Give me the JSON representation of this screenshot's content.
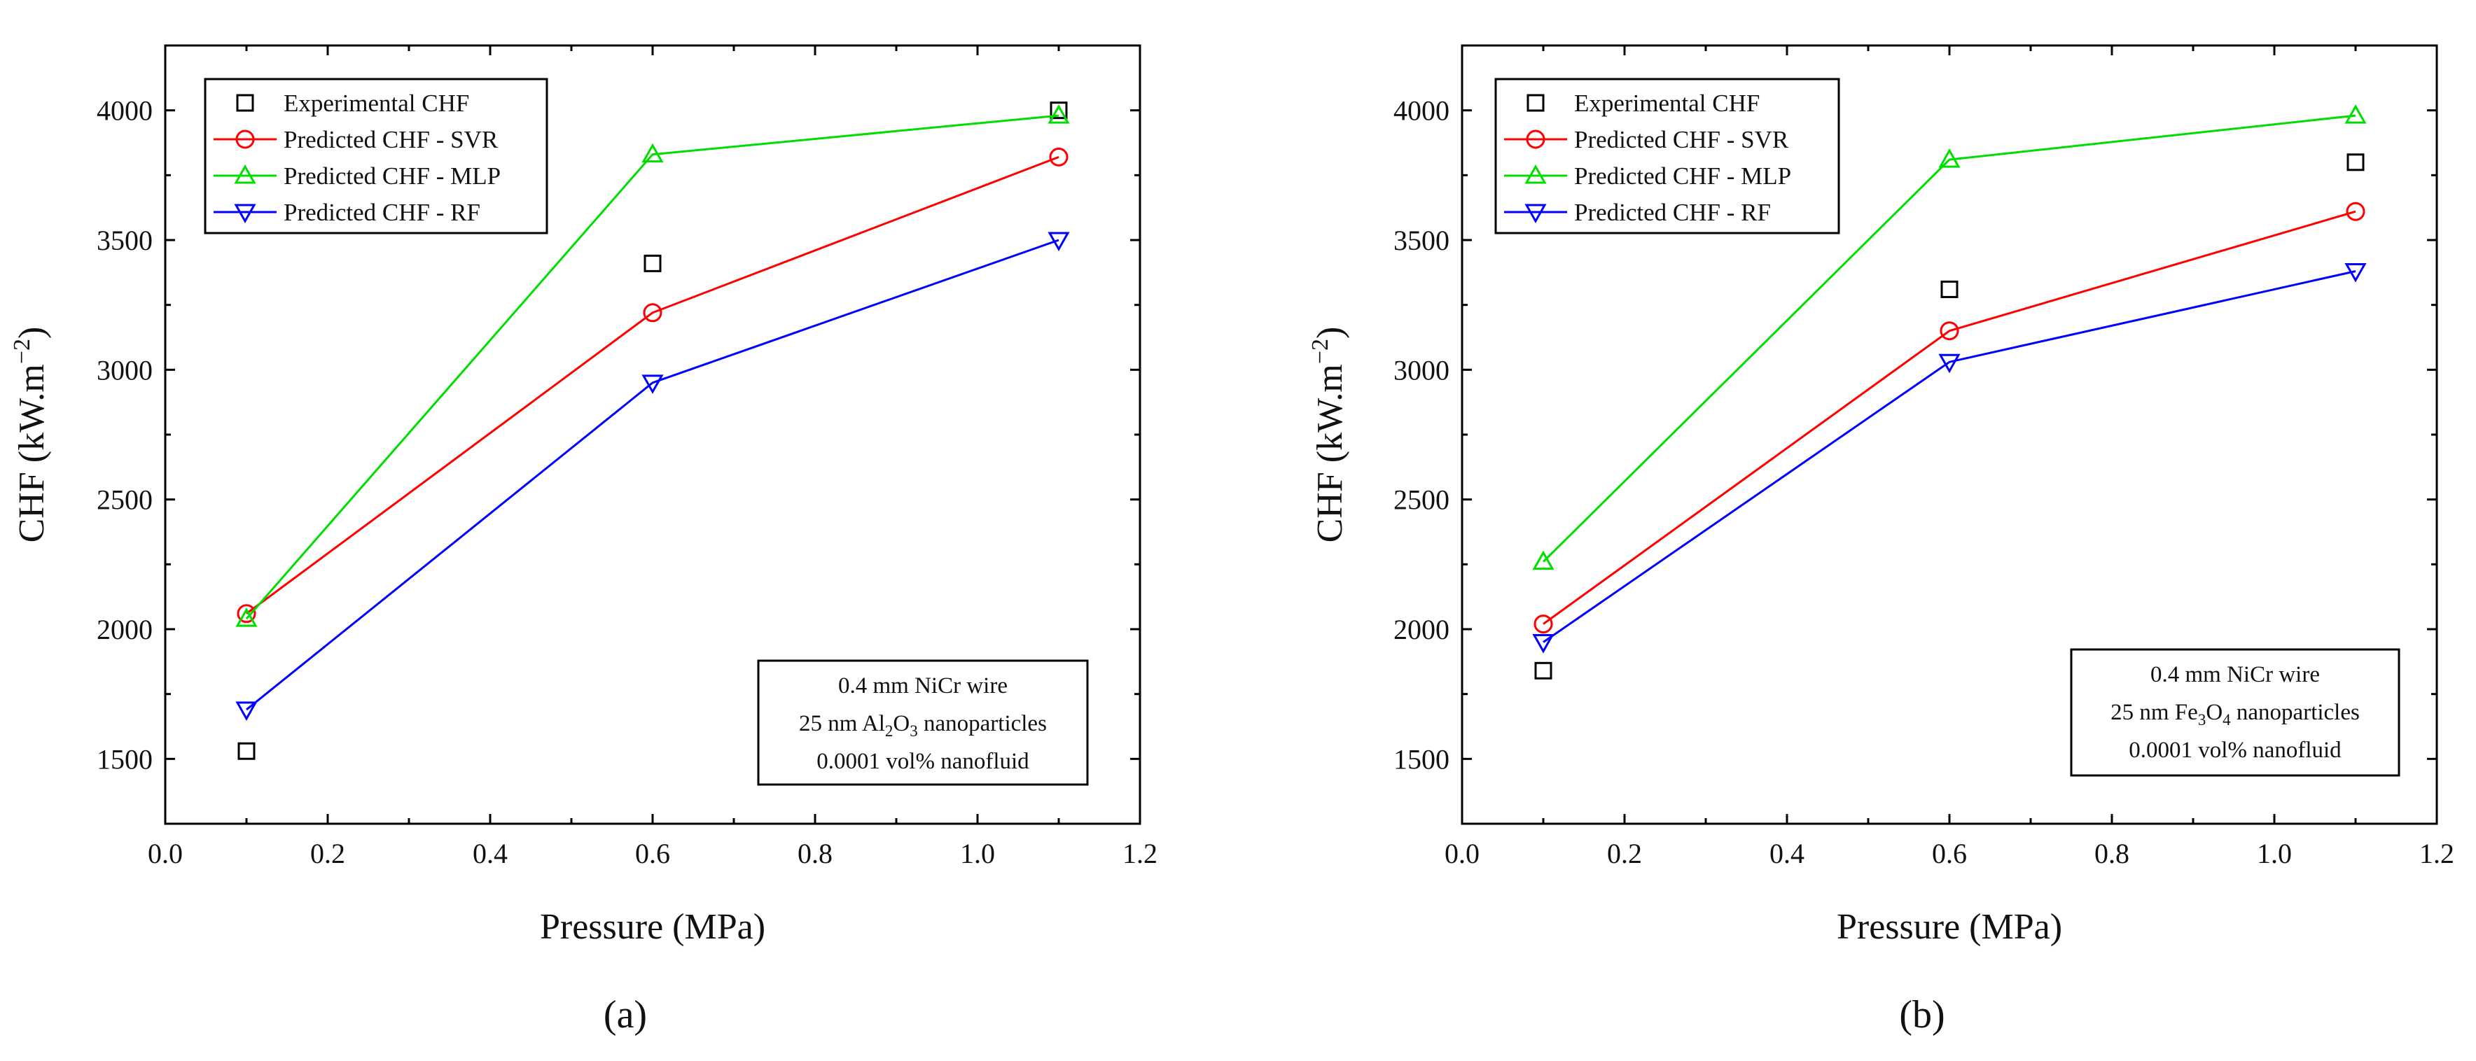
{
  "chart_data": [
    {
      "type": "line",
      "panel_label": "(a)",
      "xlabel": "Pressure (MPa)",
      "ylabel": "CHF (kW.m",
      "ylabel_sup": "−2",
      "ylabel_close": ")",
      "xlim": [
        0.0,
        1.2
      ],
      "ylim": [
        1250,
        4250
      ],
      "xticks": [
        0.0,
        0.2,
        0.4,
        0.6,
        0.8,
        1.0,
        1.2
      ],
      "xtick_labels": [
        "0.0",
        "0.2",
        "0.4",
        "0.6",
        "0.8",
        "1.0",
        "1.2"
      ],
      "yticks": [
        1500,
        2000,
        2500,
        3000,
        3500,
        4000
      ],
      "ytick_labels": [
        "1500",
        "2000",
        "2500",
        "3000",
        "3500",
        "4000"
      ],
      "x": [
        0.1,
        0.6,
        1.1
      ],
      "legend_position": "top-left",
      "series": [
        {
          "name": "Experimental CHF",
          "values": [
            1530,
            3410,
            4000
          ],
          "color": "#000000",
          "marker": "square",
          "line": false
        },
        {
          "name": "Predicted CHF - SVR",
          "values": [
            2060,
            3220,
            3820
          ],
          "color": "#ff0000",
          "marker": "circle",
          "line": true
        },
        {
          "name": "Predicted CHF - MLP",
          "values": [
            2040,
            3830,
            3980
          ],
          "color": "#00dd00",
          "marker": "triangle-up",
          "line": true
        },
        {
          "name": "Predicted CHF - RF",
          "values": [
            1690,
            2950,
            3500
          ],
          "color": "#0000ff",
          "marker": "triangle-down",
          "line": true
        }
      ],
      "annotation": {
        "line1": "0.4 mm NiCr wire",
        "line2_prefix": "25 nm Al",
        "line2_sub1": "2",
        "line2_mid": "O",
        "line2_sub2": "3",
        "line2_suffix": " nanoparticles",
        "line3": "0.0001 vol% nanofluid",
        "position": "bottom-right"
      }
    },
    {
      "type": "line",
      "panel_label": "(b)",
      "xlabel": "Pressure (MPa)",
      "ylabel": "CHF (kW.m",
      "ylabel_sup": "−2",
      "ylabel_close": ")",
      "xlim": [
        0.0,
        1.2
      ],
      "ylim": [
        1250,
        4250
      ],
      "xticks": [
        0.0,
        0.2,
        0.4,
        0.6,
        0.8,
        1.0,
        1.2
      ],
      "xtick_labels": [
        "0.0",
        "0.2",
        "0.4",
        "0.6",
        "0.8",
        "1.0",
        "1.2"
      ],
      "yticks": [
        1500,
        2000,
        2500,
        3000,
        3500,
        4000
      ],
      "ytick_labels": [
        "1500",
        "2000",
        "2500",
        "3000",
        "3500",
        "4000"
      ],
      "x": [
        0.1,
        0.6,
        1.1
      ],
      "legend_position": "top-left",
      "series": [
        {
          "name": "Experimental CHF",
          "values": [
            1840,
            3310,
            3800
          ],
          "color": "#000000",
          "marker": "square",
          "line": false
        },
        {
          "name": "Predicted CHF - SVR",
          "values": [
            2020,
            3150,
            3610
          ],
          "color": "#ff0000",
          "marker": "circle",
          "line": true
        },
        {
          "name": "Predicted CHF - MLP",
          "values": [
            2260,
            3810,
            3980
          ],
          "color": "#00dd00",
          "marker": "triangle-up",
          "line": true
        },
        {
          "name": "Predicted CHF - RF",
          "values": [
            1950,
            3030,
            3380
          ],
          "color": "#0000ff",
          "marker": "triangle-down",
          "line": true
        }
      ],
      "annotation": {
        "line1": "0.4 mm NiCr wire",
        "line2_prefix": "25 nm Fe",
        "line2_sub1": "3",
        "line2_mid": "O",
        "line2_sub2": "4",
        "line2_suffix": " nanoparticles",
        "line3": "0.0001 vol% nanofluid",
        "position": "bottom-right"
      }
    }
  ]
}
